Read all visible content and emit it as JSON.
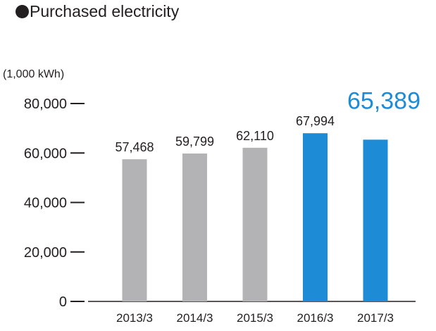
{
  "chart_data": {
    "type": "bar",
    "title": "Purchased electricity",
    "unit_label": "(1,000 kWh)",
    "categories": [
      "2013/3",
      "2014/3",
      "2015/3",
      "2016/3",
      "2017/3"
    ],
    "values": [
      57468,
      59799,
      62110,
      67994,
      65389
    ],
    "value_labels": [
      "57,468",
      "59,799",
      "62,110",
      "67,994",
      "65,389"
    ],
    "y_ticks": [
      0,
      20000,
      40000,
      60000,
      80000
    ],
    "y_tick_labels": [
      "0",
      "20,000",
      "40,000",
      "60,000",
      "80,000"
    ],
    "ylim": [
      0,
      80000
    ],
    "grid": false,
    "colors": {
      "bar_past": "#b3b3b5",
      "bar_highlight": "#1e8bd6",
      "highlight_text": "#1e8bd6",
      "axis": "#231f20"
    },
    "highlight_from_index": 3,
    "emphasized_label_index": 4
  }
}
